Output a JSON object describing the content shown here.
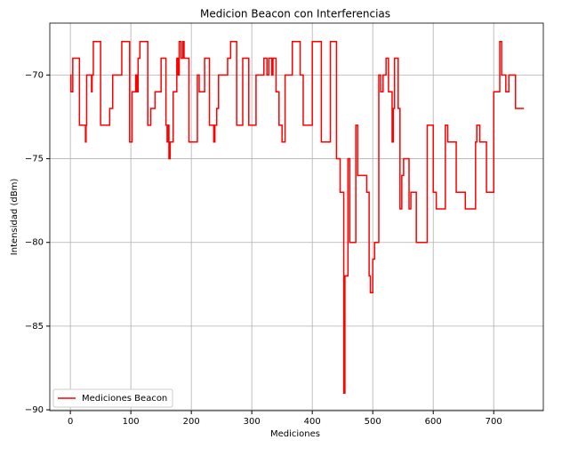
{
  "chart_data": {
    "type": "line",
    "drawstyle": "steps-post",
    "title": "Medicion Beacon con Interferencias",
    "xlabel": "Mediciones",
    "ylabel": "Intensidad (dBm)",
    "xlim": [
      -34,
      782
    ],
    "ylim": [
      -90.05,
      -66.9
    ],
    "xticks": [
      0,
      100,
      200,
      300,
      400,
      500,
      600,
      700
    ],
    "yticks": [
      {
        "value": -90,
        "label": "−90"
      },
      {
        "value": -85,
        "label": "−85"
      },
      {
        "value": -80,
        "label": "−80"
      },
      {
        "value": -75,
        "label": "−75"
      },
      {
        "value": -70,
        "label": "−70"
      }
    ],
    "grid": true,
    "legend": "lower left",
    "series": [
      {
        "name": "Mediciones Beacon",
        "color": "#ff0000",
        "x": [
          0,
          1,
          4,
          15,
          25,
          26,
          27,
          35,
          36,
          38,
          50,
          65,
          70,
          85,
          98,
          102,
          108,
          110,
          112,
          115,
          128,
          133,
          140,
          150,
          158,
          160,
          162,
          163,
          165,
          170,
          176,
          178,
          180,
          183,
          186,
          188,
          196,
          210,
          213,
          222,
          230,
          237,
          239,
          242,
          245,
          260,
          265,
          275,
          285,
          295,
          307,
          320,
          325,
          328,
          333,
          335,
          340,
          345,
          350,
          355,
          367,
          380,
          385,
          400,
          415,
          430,
          440,
          446,
          452,
          454,
          459,
          462,
          472,
          475,
          490,
          494,
          496,
          500,
          503,
          510,
          513,
          517,
          522,
          526,
          532,
          534,
          536,
          542,
          545,
          548,
          551,
          560,
          563,
          572,
          590,
          600,
          605,
          620,
          624,
          638,
          653,
          670,
          672,
          677,
          688,
          700,
          710,
          713,
          720,
          725,
          736,
          750
        ],
        "values": [
          -70,
          -71,
          -69,
          -73,
          -74,
          -73,
          -70,
          -71,
          -70,
          -68,
          -73,
          -72,
          -70,
          -68,
          -74,
          -71,
          -70,
          -71,
          -69,
          -68,
          -73,
          -72,
          -71,
          -69,
          -73,
          -74,
          -73,
          -75,
          -74,
          -71,
          -69,
          -70,
          -68,
          -69,
          -68,
          -69,
          -74,
          -70,
          -71,
          -69,
          -73,
          -74,
          -73,
          -72,
          -70,
          -69,
          -68,
          -73,
          -69,
          -73,
          -70,
          -69,
          -70,
          -69,
          -70,
          -69,
          -71,
          -73,
          -74,
          -70,
          -68,
          -70,
          -73,
          -68,
          -74,
          -68,
          -75,
          -77,
          -89,
          -82,
          -75,
          -80,
          -73,
          -76,
          -77,
          -82,
          -83,
          -81,
          -80,
          -70,
          -71,
          -70,
          -69,
          -71,
          -74,
          -72,
          -69,
          -72,
          -78,
          -76,
          -75,
          -78,
          -77,
          -80,
          -73,
          -77,
          -78,
          -73,
          -74,
          -77,
          -78,
          -74,
          -73,
          -74,
          -77,
          -71,
          -68,
          -70,
          -71,
          -70,
          -72,
          -72
        ]
      }
    ]
  }
}
